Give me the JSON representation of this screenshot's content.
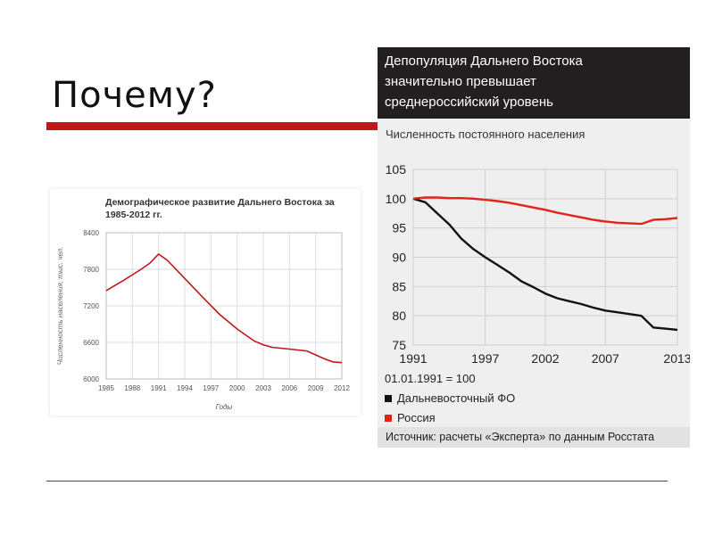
{
  "slide": {
    "title": "Почему?"
  },
  "chart_data": [
    {
      "type": "line",
      "title": "Демографическое развитие Дальнего Востока за 1985-2012 гг.",
      "xlabel": "Годы",
      "ylabel": "Численность населения, тыс. чел.",
      "xlim": [
        1985,
        2012
      ],
      "ylim": [
        6000,
        8400
      ],
      "x_ticks": [
        "1985",
        "1988",
        "1991",
        "1994",
        "1997",
        "2000",
        "2003",
        "2006",
        "2009",
        "2012"
      ],
      "y_ticks": [
        "6000",
        "6600",
        "7200",
        "7800",
        "8400"
      ],
      "grid": true,
      "series": [
        {
          "color": "#c0171c",
          "x": [
            1985,
            1987,
            1989,
            1990,
            1991,
            1992,
            1994,
            1996,
            1998,
            2000,
            2002,
            2003,
            2004,
            2006,
            2008,
            2010,
            2011,
            2012
          ],
          "values": [
            7450,
            7620,
            7800,
            7900,
            8050,
            7950,
            7650,
            7350,
            7060,
            6820,
            6620,
            6560,
            6520,
            6490,
            6460,
            6330,
            6280,
            6270
          ]
        }
      ]
    },
    {
      "type": "line",
      "title": "Депопуляция Дальнего Востока значительно превышает среднероссийский уровень",
      "title_lines": [
        "Депопуляция Дальнего Востока",
        "значительно превышает",
        "среднероссийский уровень"
      ],
      "subtitle": "Численность постоянного населения",
      "xlim": [
        1991,
        2013
      ],
      "ylim": [
        75,
        105
      ],
      "x_ticks": [
        "1991",
        "1997",
        "2002",
        "2007",
        "2013"
      ],
      "y_ticks": [
        "105",
        "100",
        "95",
        "90",
        "85",
        "80",
        "75"
      ],
      "grid": true,
      "note": "01.01.1991 = 100",
      "source": "Источник: расчеты «Эксперта» по данным Росстата",
      "series": [
        {
          "name": "Дальневосточный ФО",
          "color": "#111111",
          "x": [
            1991,
            1992,
            1993,
            1994,
            1995,
            1996,
            1997,
            1998,
            1999,
            2000,
            2001,
            2002,
            2003,
            2004,
            2005,
            2006,
            2007,
            2008,
            2009,
            2010,
            2011,
            2012,
            2013
          ],
          "values": [
            100,
            99.4,
            97.5,
            95.6,
            93.2,
            91.4,
            90.0,
            88.7,
            87.4,
            85.9,
            84.9,
            83.8,
            83.0,
            82.5,
            82.0,
            81.4,
            80.9,
            80.6,
            80.3,
            80.0,
            78.0,
            77.8,
            77.6
          ]
        },
        {
          "name": "Россия",
          "color": "#e2231a",
          "x": [
            1991,
            1992,
            1993,
            1994,
            1995,
            1996,
            1997,
            1998,
            1999,
            2000,
            2001,
            2002,
            2003,
            2004,
            2005,
            2006,
            2007,
            2008,
            2009,
            2010,
            2011,
            2012,
            2013
          ],
          "values": [
            100,
            100.2,
            100.2,
            100.1,
            100.1,
            100.0,
            99.8,
            99.6,
            99.3,
            98.9,
            98.5,
            98.1,
            97.6,
            97.2,
            96.8,
            96.4,
            96.1,
            95.9,
            95.8,
            95.7,
            96.4,
            96.5,
            96.7
          ]
        }
      ]
    }
  ]
}
